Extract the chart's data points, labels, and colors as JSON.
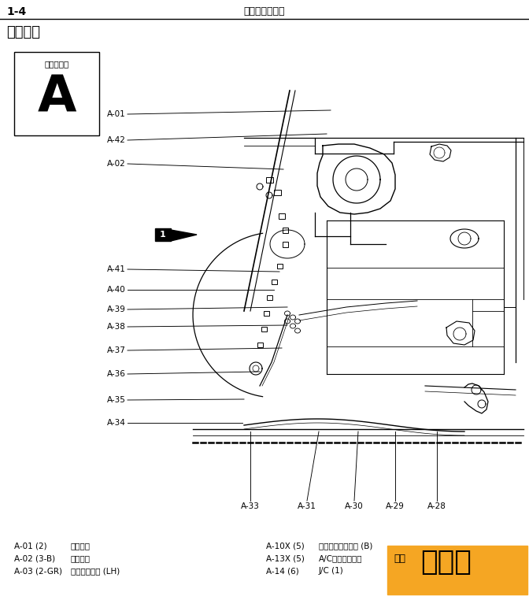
{
  "page_num": "1-4",
  "page_title": "电气配线接线图",
  "section_title": "发动机届",
  "connector_label": "连接器符号",
  "connector_letter": "A",
  "callout_number": "1",
  "left_labels": [
    "A-01",
    "A-42",
    "A-02",
    "A-41",
    "A-40",
    "A-39",
    "A-38",
    "A-37",
    "A-36",
    "A-35",
    "A-34"
  ],
  "bottom_labels": [
    "A-33",
    "A-31",
    "A-30",
    "A-29",
    "A-28"
  ],
  "note_left": [
    [
      "A-01 (2)",
      "自动天线"
    ],
    [
      "A-02 (3-B)",
      "自动天线"
    ],
    [
      "A-03 (2-GR)",
      "側转向信号灯 (LH)"
    ]
  ],
  "note_right": [
    [
      "A-10X (5)",
      "冷却器风扇继电器 (B)"
    ],
    [
      "A-13X (5)",
      "A/C压缩机继电器"
    ],
    [
      "A-14 (6)",
      "J/C (1)"
    ]
  ],
  "watermark_text": "修帮手",
  "watermark_pre": "汽车",
  "bg_color": "#ffffff",
  "lc": "#000000",
  "wm_bg": "#f5a623"
}
